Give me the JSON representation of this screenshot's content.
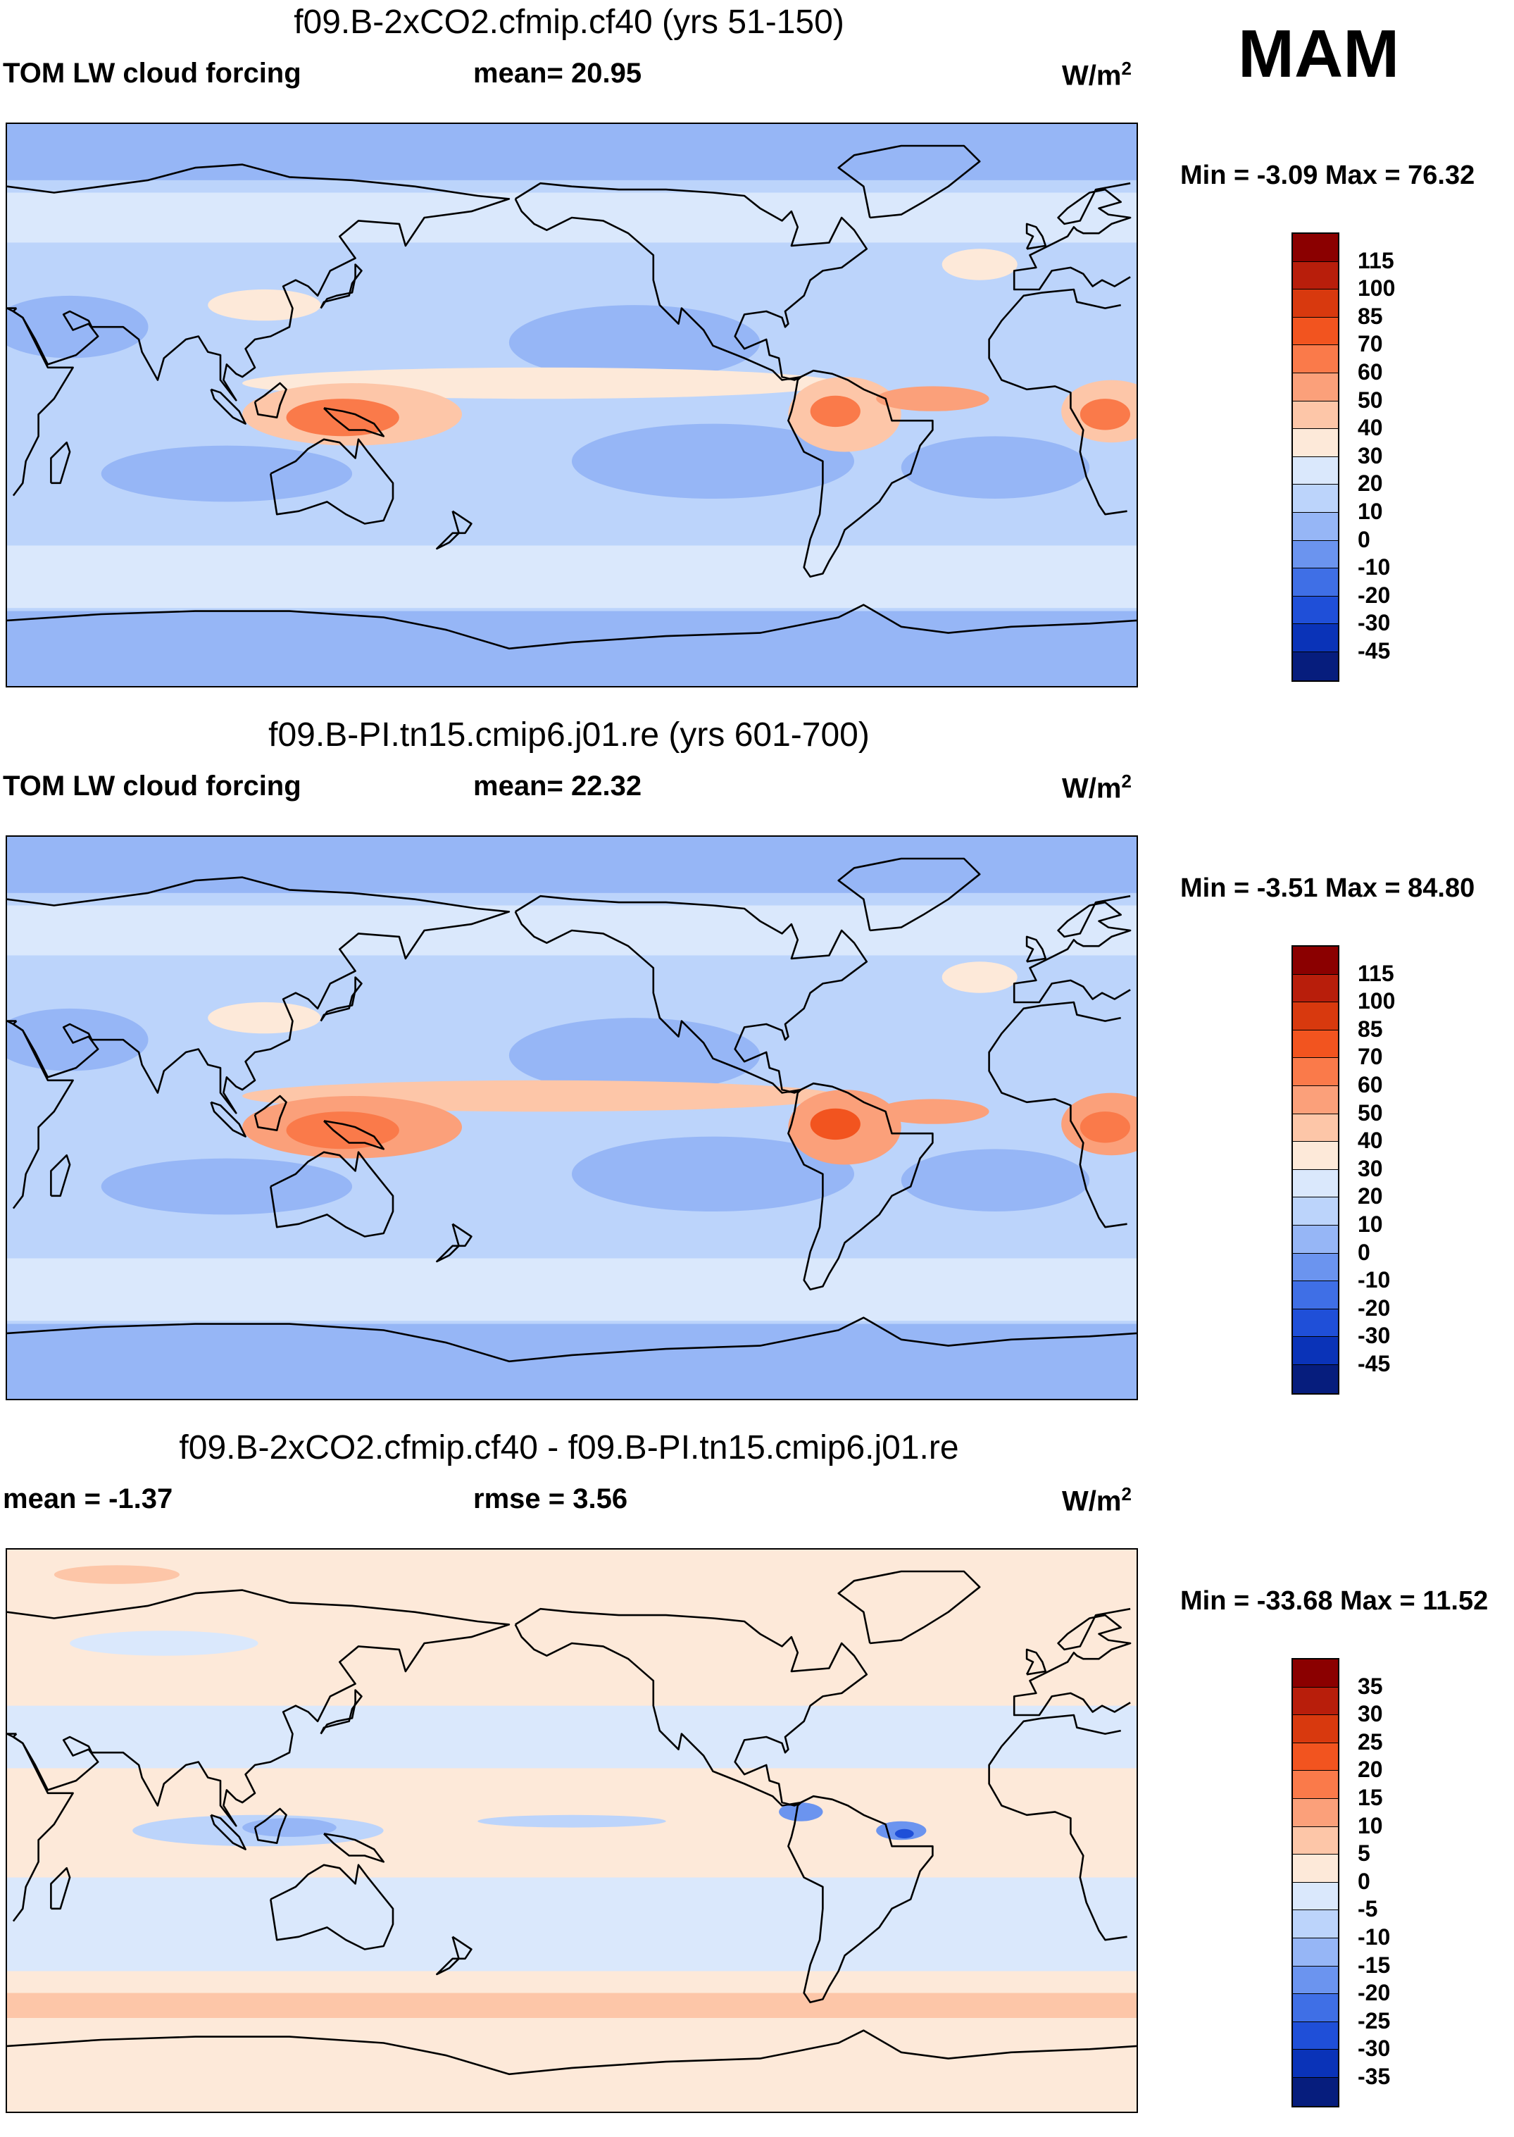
{
  "season": "MAM",
  "units_base": "W/m",
  "units_exp": "2",
  "panels": [
    {
      "title": "f09.B-2xCO2.cfmip.cf40 (yrs 51-150)",
      "left_label": "TOM LW cloud forcing",
      "mid_label": "mean=  20.95",
      "minmax": "Min =  -3.09 Max =  76.32",
      "color_levels": [
        "115",
        "100",
        "85",
        "70",
        "60",
        "50",
        "40",
        "30",
        "20",
        "10",
        "0",
        "-10",
        "-20",
        "-30",
        "-45"
      ],
      "palette": [
        "#8b0000",
        "#b81e0b",
        "#d8390e",
        "#f2541f",
        "#fa7a4a",
        "#fba07a",
        "#fdc6a8",
        "#fde9d9",
        "#dae8fc",
        "#bcd4fb",
        "#96b6f6",
        "#6b94ef",
        "#3f6fe6",
        "#1f4fd8",
        "#0a33b8",
        "#061d7d"
      ],
      "chart_data": {
        "type": "heatmap",
        "projection": "cylindrical equidistant, Pacific-centred",
        "field": "TOM LW cloud forcing (W/m2)",
        "mean": 20.95,
        "min": -3.09,
        "max": 76.32,
        "levels": [
          115,
          100,
          85,
          70,
          60,
          50,
          40,
          30,
          20,
          10,
          0,
          -10,
          -20,
          -30,
          -45
        ],
        "features": [
          {
            "region": "central Africa",
            "value": 60
          },
          {
            "region": "maritime continent / New Guinea",
            "value": 55
          },
          {
            "region": "Amazon",
            "value": 65
          },
          {
            "region": "equatorial Atlantic ITCZ",
            "value": 50
          },
          {
            "region": "Pacific ITCZ",
            "value": 40
          },
          {
            "region": "subtropical oceans",
            "value": 10
          },
          {
            "region": "Antarctica",
            "value": 5
          }
        ]
      }
    },
    {
      "title": "f09.B-PI.tn15.cmip6.j01.re (yrs 601-700)",
      "left_label": "TOM LW cloud forcing",
      "mid_label": "mean=  22.32",
      "minmax": "Min =  -3.51 Max =  84.80",
      "color_levels": [
        "115",
        "100",
        "85",
        "70",
        "60",
        "50",
        "40",
        "30",
        "20",
        "10",
        "0",
        "-10",
        "-20",
        "-30",
        "-45"
      ],
      "palette": [
        "#8b0000",
        "#b81e0b",
        "#d8390e",
        "#f2541f",
        "#fa7a4a",
        "#fba07a",
        "#fdc6a8",
        "#fde9d9",
        "#dae8fc",
        "#bcd4fb",
        "#96b6f6",
        "#6b94ef",
        "#3f6fe6",
        "#1f4fd8",
        "#0a33b8",
        "#061d7d"
      ],
      "chart_data": {
        "type": "heatmap",
        "projection": "cylindrical equidistant, Pacific-centred",
        "field": "TOM LW cloud forcing (W/m2)",
        "mean": 22.32,
        "min": -3.51,
        "max": 84.8,
        "levels": [
          115,
          100,
          85,
          70,
          60,
          50,
          40,
          30,
          20,
          10,
          0,
          -10,
          -20,
          -30,
          -45
        ],
        "features": [
          {
            "region": "central Africa",
            "value": 60
          },
          {
            "region": "maritime continent / New Guinea",
            "value": 65
          },
          {
            "region": "Amazon",
            "value": 70
          },
          {
            "region": "equatorial Atlantic ITCZ",
            "value": 55
          },
          {
            "region": "Pacific ITCZ",
            "value": 45
          },
          {
            "region": "subtropical oceans",
            "value": 10
          },
          {
            "region": "Antarctica",
            "value": 5
          }
        ]
      }
    },
    {
      "title": "f09.B-2xCO2.cfmip.cf40 - f09.B-PI.tn15.cmip6.j01.re",
      "left_label": "mean =  -1.37",
      "mid_label": "rmse =    3.56",
      "minmax": "Min = -33.68 Max =  11.52",
      "color_levels": [
        "35",
        "30",
        "25",
        "20",
        "15",
        "10",
        "5",
        "0",
        "-5",
        "-10",
        "-15",
        "-20",
        "-25",
        "-30",
        "-35"
      ],
      "palette": [
        "#8b0000",
        "#b81e0b",
        "#d8390e",
        "#f2541f",
        "#fa7a4a",
        "#fba07a",
        "#fdc6a8",
        "#fde9d9",
        "#dae8fc",
        "#bcd4fb",
        "#96b6f6",
        "#6b94ef",
        "#3f6fe6",
        "#1f4fd8",
        "#0a33b8",
        "#061d7d"
      ],
      "chart_data": {
        "type": "heatmap",
        "projection": "cylindrical equidistant, Pacific-centred",
        "field": "difference of TOM LW cloud forcing (W/m2)",
        "mean": -1.37,
        "rmse": 3.56,
        "min": -33.68,
        "max": 11.52,
        "levels": [
          35,
          30,
          25,
          20,
          15,
          10,
          5,
          0,
          -5,
          -10,
          -15,
          -20,
          -25,
          -30,
          -35
        ],
        "features": [
          {
            "region": "northern Amazon / Caribbean",
            "value": -20
          },
          {
            "region": "Indian Ocean / maritime continent",
            "value": -10
          },
          {
            "region": "Southern Ocean band",
            "value": 5
          },
          {
            "region": "North Pacific",
            "value": 3
          },
          {
            "region": "global background",
            "value": 0
          }
        ]
      }
    }
  ]
}
